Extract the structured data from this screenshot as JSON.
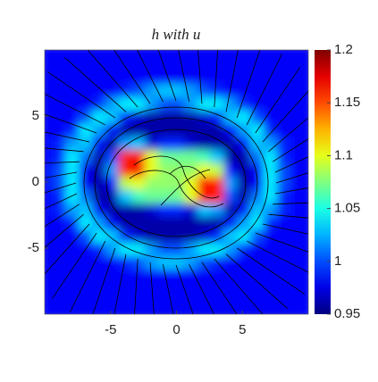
{
  "chart_data": {
    "type": "heatmap",
    "title": "h with u",
    "x": [
      -9.5,
      -8.5,
      -7.5,
      -6.5,
      -5.5,
      -4.5,
      -3.5,
      -2.5,
      -1.5,
      -0.5,
      0.5,
      1.5,
      2.5,
      3.5,
      4.5,
      5.5,
      6.5,
      7.5,
      8.5,
      9.5
    ],
    "y": [
      9.5,
      8.5,
      7.5,
      6.5,
      5.5,
      4.5,
      3.5,
      2.5,
      1.5,
      0.5,
      -0.5,
      -1.5,
      -2.5,
      -3.5,
      -4.5,
      -5.5,
      -6.5,
      -7.5,
      -8.5,
      -9.5
    ],
    "z": [
      [
        0.98,
        0.98,
        0.98,
        0.98,
        0.98,
        0.98,
        0.98,
        0.98,
        0.98,
        0.98,
        0.98,
        0.98,
        0.98,
        0.98,
        0.98,
        0.98,
        0.98,
        0.98,
        0.98,
        0.98
      ],
      [
        0.98,
        0.98,
        0.98,
        0.98,
        0.98,
        0.98,
        0.98,
        0.98,
        0.98,
        0.98,
        0.98,
        0.98,
        0.98,
        0.98,
        0.98,
        0.98,
        0.98,
        0.98,
        0.98,
        0.98
      ],
      [
        0.98,
        0.98,
        0.98,
        0.98,
        0.98,
        0.98,
        0.98,
        0.98,
        0.98,
        0.98,
        0.98,
        0.98,
        0.98,
        0.98,
        0.98,
        0.98,
        0.98,
        0.98,
        0.98,
        0.98
      ],
      [
        0.98,
        0.98,
        0.98,
        0.98,
        0.98,
        0.98,
        0.99,
        1.0,
        1.02,
        1.03,
        1.03,
        1.02,
        1.0,
        0.99,
        0.98,
        0.98,
        0.98,
        0.98,
        0.98,
        0.98
      ],
      [
        0.98,
        0.98,
        0.98,
        0.98,
        0.99,
        1.02,
        1.04,
        1.04,
        1.02,
        1.0,
        1.0,
        1.02,
        1.04,
        1.04,
        1.02,
        0.99,
        0.98,
        0.98,
        0.98,
        0.98
      ],
      [
        0.98,
        0.98,
        0.98,
        1.0,
        1.04,
        1.03,
        0.99,
        0.97,
        0.96,
        0.96,
        0.96,
        0.96,
        0.97,
        0.99,
        1.03,
        1.04,
        1.0,
        0.98,
        0.98,
        0.98
      ],
      [
        0.98,
        0.98,
        0.99,
        1.04,
        1.02,
        0.98,
        0.96,
        0.96,
        0.96,
        0.96,
        0.96,
        0.96,
        0.96,
        0.96,
        0.98,
        1.02,
        1.04,
        0.99,
        0.98,
        0.98
      ],
      [
        0.98,
        0.99,
        1.02,
        1.03,
        0.98,
        0.96,
        1.02,
        1.03,
        0.97,
        0.99,
        0.99,
        0.97,
        0.96,
        0.96,
        0.96,
        0.98,
        1.03,
        1.02,
        0.99,
        0.98
      ],
      [
        0.98,
        0.99,
        1.04,
        1.01,
        0.96,
        1.0,
        1.16,
        1.17,
        1.1,
        1.07,
        1.07,
        1.07,
        1.06,
        1.03,
        0.96,
        0.96,
        1.01,
        1.04,
        0.99,
        0.98
      ],
      [
        0.98,
        1.0,
        1.04,
        0.98,
        0.96,
        1.02,
        1.16,
        1.17,
        1.1,
        1.08,
        1.08,
        1.08,
        1.1,
        1.09,
        0.98,
        0.96,
        0.98,
        1.04,
        1.0,
        0.98
      ],
      [
        0.98,
        1.0,
        1.04,
        0.98,
        0.96,
        0.98,
        1.09,
        1.1,
        1.08,
        1.08,
        1.08,
        1.1,
        1.17,
        1.16,
        1.02,
        0.96,
        0.98,
        1.04,
        1.0,
        0.98
      ],
      [
        0.98,
        0.99,
        1.04,
        1.01,
        0.96,
        0.96,
        1.03,
        1.06,
        1.07,
        1.07,
        1.07,
        1.1,
        1.17,
        1.16,
        1.0,
        0.96,
        1.01,
        1.04,
        0.99,
        0.98
      ],
      [
        0.98,
        0.99,
        1.02,
        1.03,
        0.98,
        0.96,
        0.96,
        0.96,
        0.97,
        0.99,
        0.99,
        0.97,
        1.03,
        1.02,
        0.96,
        0.98,
        1.03,
        1.02,
        0.99,
        0.98
      ],
      [
        0.98,
        0.98,
        0.99,
        1.04,
        1.02,
        0.98,
        0.96,
        0.96,
        0.96,
        0.96,
        0.96,
        0.96,
        0.96,
        0.96,
        0.98,
        1.02,
        1.04,
        0.99,
        0.98,
        0.98
      ],
      [
        0.98,
        0.98,
        0.98,
        1.0,
        1.04,
        1.03,
        0.99,
        0.97,
        0.96,
        0.96,
        0.96,
        0.96,
        0.97,
        0.99,
        1.03,
        1.04,
        1.0,
        0.98,
        0.98,
        0.98
      ],
      [
        0.98,
        0.98,
        0.98,
        0.98,
        0.99,
        1.02,
        1.04,
        1.04,
        1.02,
        1.0,
        1.0,
        1.02,
        1.04,
        1.04,
        1.02,
        0.99,
        0.98,
        0.98,
        0.98,
        0.98
      ],
      [
        0.98,
        0.98,
        0.98,
        0.98,
        0.98,
        0.98,
        0.99,
        1.0,
        1.02,
        1.03,
        1.03,
        1.02,
        1.0,
        0.99,
        0.98,
        0.98,
        0.98,
        0.98,
        0.98,
        0.98
      ],
      [
        0.98,
        0.98,
        0.98,
        0.98,
        0.98,
        0.98,
        0.98,
        0.98,
        0.98,
        0.98,
        0.98,
        0.98,
        0.98,
        0.98,
        0.98,
        0.98,
        0.98,
        0.98,
        0.98,
        0.98
      ],
      [
        0.98,
        0.98,
        0.98,
        0.98,
        0.98,
        0.98,
        0.98,
        0.98,
        0.98,
        0.98,
        0.98,
        0.98,
        0.98,
        0.98,
        0.98,
        0.98,
        0.98,
        0.98,
        0.98,
        0.98
      ],
      [
        0.98,
        0.98,
        0.98,
        0.98,
        0.98,
        0.98,
        0.98,
        0.98,
        0.98,
        0.98,
        0.98,
        0.98,
        0.98,
        0.98,
        0.98,
        0.98,
        0.98,
        0.98,
        0.98,
        0.98
      ]
    ],
    "xlim": [
      -10,
      10
    ],
    "ylim": [
      -10,
      10
    ],
    "xticks": [
      -5,
      0,
      5
    ],
    "yticks": [
      -5,
      0,
      5
    ],
    "colormap": "jet",
    "clim": [
      0.95,
      1.2
    ],
    "cticks": [
      0.95,
      1,
      1.05,
      1.1,
      1.15,
      1.2
    ]
  }
}
